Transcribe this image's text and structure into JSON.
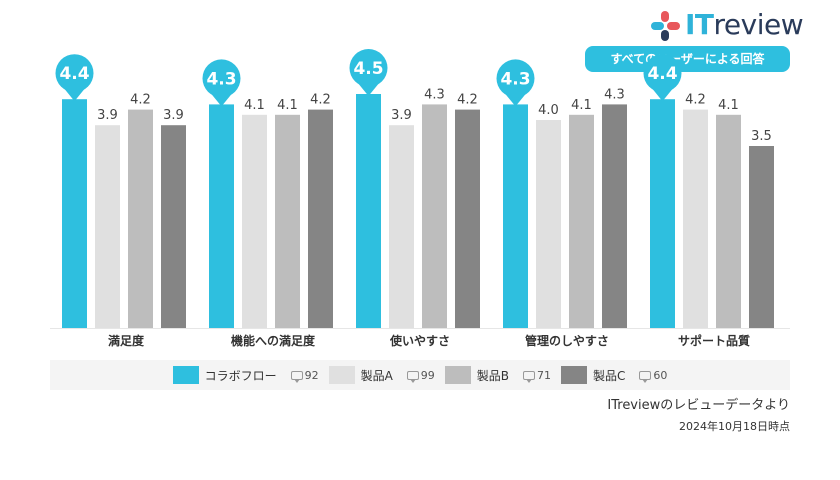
{
  "brand": {
    "name_it": "IT",
    "name_review": "review"
  },
  "subtitle": "すべてのユーザーによる回答",
  "colors": {
    "product_main": "#2ebfdf",
    "productA": "#e0e0e0",
    "productB": "#bdbdbd",
    "productC": "#858585",
    "logo_red": "#e8575b",
    "logo_cyan": "#2fb3d9",
    "logo_navy": "#2a3b5a"
  },
  "chart_data": {
    "type": "bar",
    "categories": [
      "満足度",
      "機能への満足度",
      "使いやすさ",
      "管理のしやすさ",
      "サポート品質"
    ],
    "series": [
      {
        "name": "コラボフロー",
        "values": [
          4.4,
          4.3,
          4.5,
          4.3,
          4.4
        ]
      },
      {
        "name": "製品A",
        "values": [
          3.9,
          4.1,
          3.9,
          4.0,
          4.2
        ]
      },
      {
        "name": "製品B",
        "values": [
          4.2,
          4.1,
          4.3,
          4.1,
          4.1
        ]
      },
      {
        "name": "製品C",
        "values": [
          3.9,
          4.2,
          4.2,
          4.3,
          3.5
        ]
      }
    ],
    "ylim": [
      0,
      5
    ],
    "grid": false,
    "title": "",
    "xlabel": "",
    "ylabel": ""
  },
  "legend": [
    {
      "name": "コラボフロー",
      "count": "92"
    },
    {
      "name": "製品A",
      "count": "99"
    },
    {
      "name": "製品B",
      "count": "71"
    },
    {
      "name": "製品C",
      "count": "60"
    }
  ],
  "source": "ITreviewのレビューデータより",
  "date": "2024年10月18日時点"
}
